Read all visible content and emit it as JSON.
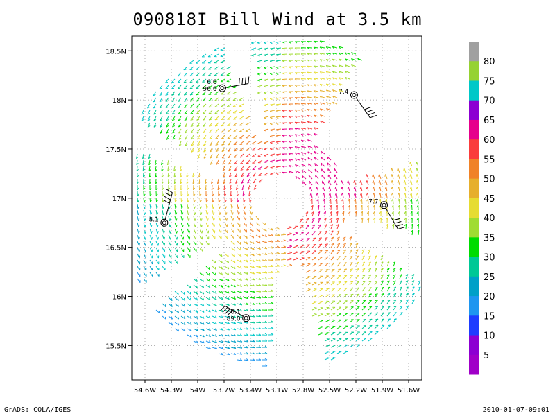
{
  "title": "090818I Bill Wind at 3.5 km",
  "footer": {
    "left": "GrADS: COLA/IGES",
    "right": "2010-01-07-09:01"
  },
  "chart_data": {
    "type": "vector",
    "title": "090818I Bill Wind at 3.5 km",
    "xlabel": "",
    "ylabel": "",
    "xlim": [
      -54.75,
      -51.45
    ],
    "ylim": [
      15.15,
      18.65
    ],
    "grid": true,
    "x_ticks": [
      {
        "value": -54.6,
        "label": "54.6W"
      },
      {
        "value": -54.3,
        "label": "54.3W"
      },
      {
        "value": -54.0,
        "label": "54W"
      },
      {
        "value": -53.7,
        "label": "53.7W"
      },
      {
        "value": -53.4,
        "label": "53.4W"
      },
      {
        "value": -53.1,
        "label": "53.1W"
      },
      {
        "value": -52.8,
        "label": "52.8W"
      },
      {
        "value": -52.5,
        "label": "52.5W"
      },
      {
        "value": -52.2,
        "label": "52.2W"
      },
      {
        "value": -51.9,
        "label": "51.9W"
      },
      {
        "value": -51.6,
        "label": "51.6W"
      }
    ],
    "y_ticks": [
      {
        "value": 18.5,
        "label": "18.5N"
      },
      {
        "value": 18.0,
        "label": "18N"
      },
      {
        "value": 17.5,
        "label": "17.5N"
      },
      {
        "value": 17.0,
        "label": "17N"
      },
      {
        "value": 16.5,
        "label": "16.5N"
      },
      {
        "value": 16.0,
        "label": "16N"
      },
      {
        "value": 15.5,
        "label": "15.5N"
      }
    ],
    "storm_center": {
      "lon": -53.05,
      "lat": 16.97
    },
    "colorbar": {
      "labels": [
        "80",
        "75",
        "70",
        "65",
        "60",
        "55",
        "50",
        "45",
        "40",
        "35",
        "30",
        "25",
        "20",
        "15",
        "10",
        "5"
      ],
      "colors": [
        "#a0a0a0",
        "#96d232",
        "#00c8c8",
        "#8c00d2",
        "#e6008c",
        "#fa3c3c",
        "#f08228",
        "#e6af2d",
        "#e6dc32",
        "#a0dc32",
        "#00dc00",
        "#00c896",
        "#00a0c8",
        "#1e96f0",
        "#1e3cff",
        "#8c00d2",
        "#a000c8"
      ]
    },
    "stations": [
      {
        "lon": -53.72,
        "lat": 18.12,
        "labels": [
          "6.6",
          "96.6"
        ]
      },
      {
        "lon": -52.22,
        "lat": 18.05,
        "labels": [
          "7.4"
        ]
      },
      {
        "lon": -54.38,
        "lat": 16.75,
        "labels": [
          "8.1"
        ]
      },
      {
        "lon": -51.88,
        "lat": 16.93,
        "labels": [
          "7.7"
        ]
      },
      {
        "lon": -53.45,
        "lat": 15.78,
        "labels": [
          "8.1",
          "89.0"
        ]
      }
    ]
  }
}
